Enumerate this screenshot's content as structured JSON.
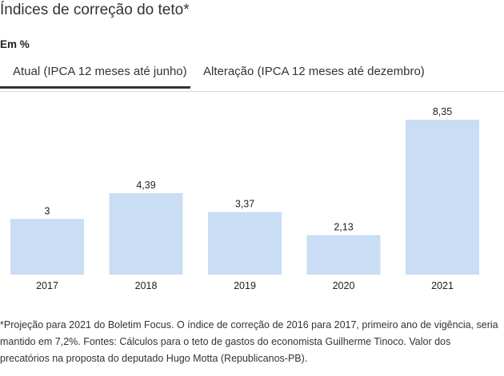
{
  "header": {
    "title": "Índices de correção do teto*",
    "unit": "Em %"
  },
  "tabs": [
    {
      "label": "Atual (IPCA 12 meses até junho)",
      "active": true
    },
    {
      "label": "Alteração (IPCA 12 meses até dezembro)",
      "active": false
    }
  ],
  "chart_data": {
    "type": "bar",
    "categories": [
      "2017",
      "2018",
      "2019",
      "2020",
      "2021"
    ],
    "values": [
      3,
      4.39,
      3.37,
      2.13,
      8.35
    ],
    "value_labels": [
      "3",
      "4,39",
      "3,37",
      "2,13",
      "8,35"
    ],
    "ylim": [
      0,
      8.35
    ],
    "grid": false,
    "bar_color": "#c9ddf4"
  },
  "footnote": "*Projeção para 2021 do Boletim Focus. O índice de correção de 2016 para 2017, primeiro ano de vigência, seria mantido em 7,2%. Fontes: Cálculos para o teto de gastos do economista Guilherme Tinoco. Valor dos precatórios na proposta do deputado Hugo Motta (Republicanos-PB).",
  "colors": {
    "bar": "#c9ddf4",
    "active_tab_underline": "#333333",
    "text": "#222222"
  }
}
